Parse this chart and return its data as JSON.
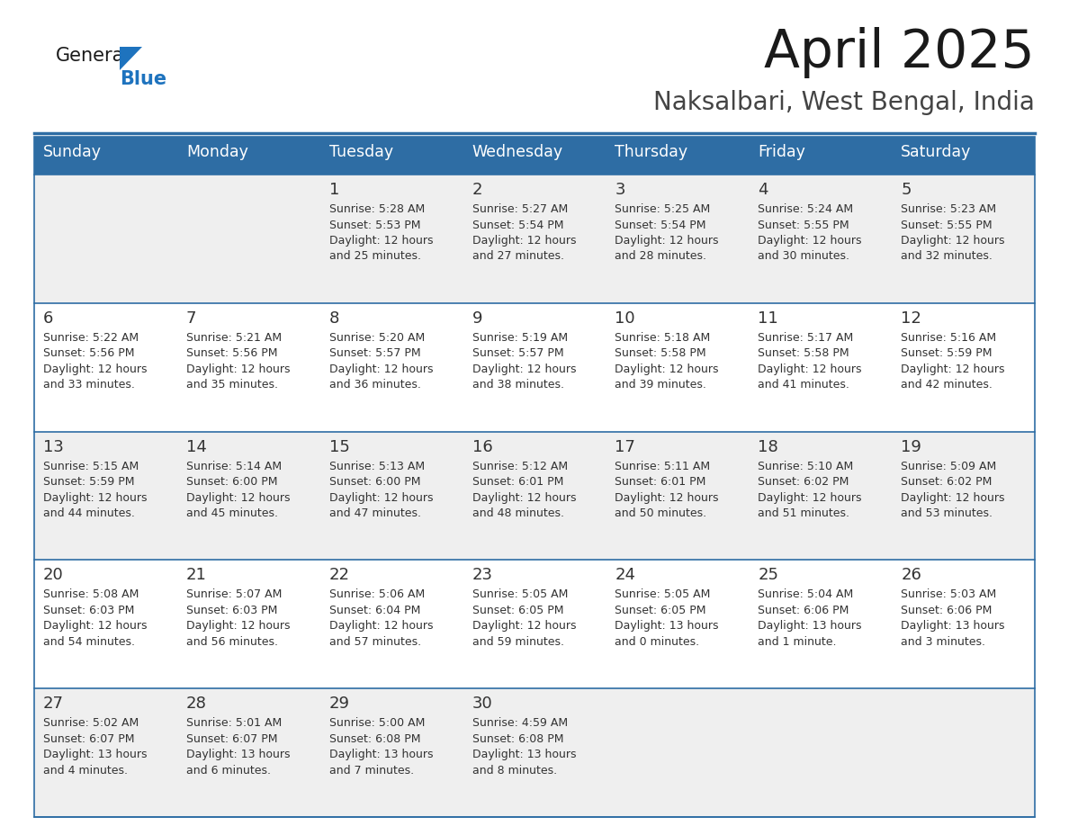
{
  "title": "April 2025",
  "subtitle": "Naksalbari, West Bengal, India",
  "days_of_week": [
    "Sunday",
    "Monday",
    "Tuesday",
    "Wednesday",
    "Thursday",
    "Friday",
    "Saturday"
  ],
  "header_bg": "#2E6DA4",
  "header_text": "#FFFFFF",
  "row_bg_odd": "#EFEFEF",
  "row_bg_even": "#FFFFFF",
  "divider_color": "#2E6DA4",
  "text_color": "#333333",
  "calendar_data": [
    [
      {
        "day": null,
        "sunrise": null,
        "sunset": null,
        "daylight_line1": null,
        "daylight_line2": null
      },
      {
        "day": null,
        "sunrise": null,
        "sunset": null,
        "daylight_line1": null,
        "daylight_line2": null
      },
      {
        "day": "1",
        "sunrise": "Sunrise: 5:28 AM",
        "sunset": "Sunset: 5:53 PM",
        "daylight_line1": "Daylight: 12 hours",
        "daylight_line2": "and 25 minutes."
      },
      {
        "day": "2",
        "sunrise": "Sunrise: 5:27 AM",
        "sunset": "Sunset: 5:54 PM",
        "daylight_line1": "Daylight: 12 hours",
        "daylight_line2": "and 27 minutes."
      },
      {
        "day": "3",
        "sunrise": "Sunrise: 5:25 AM",
        "sunset": "Sunset: 5:54 PM",
        "daylight_line1": "Daylight: 12 hours",
        "daylight_line2": "and 28 minutes."
      },
      {
        "day": "4",
        "sunrise": "Sunrise: 5:24 AM",
        "sunset": "Sunset: 5:55 PM",
        "daylight_line1": "Daylight: 12 hours",
        "daylight_line2": "and 30 minutes."
      },
      {
        "day": "5",
        "sunrise": "Sunrise: 5:23 AM",
        "sunset": "Sunset: 5:55 PM",
        "daylight_line1": "Daylight: 12 hours",
        "daylight_line2": "and 32 minutes."
      }
    ],
    [
      {
        "day": "6",
        "sunrise": "Sunrise: 5:22 AM",
        "sunset": "Sunset: 5:56 PM",
        "daylight_line1": "Daylight: 12 hours",
        "daylight_line2": "and 33 minutes."
      },
      {
        "day": "7",
        "sunrise": "Sunrise: 5:21 AM",
        "sunset": "Sunset: 5:56 PM",
        "daylight_line1": "Daylight: 12 hours",
        "daylight_line2": "and 35 minutes."
      },
      {
        "day": "8",
        "sunrise": "Sunrise: 5:20 AM",
        "sunset": "Sunset: 5:57 PM",
        "daylight_line1": "Daylight: 12 hours",
        "daylight_line2": "and 36 minutes."
      },
      {
        "day": "9",
        "sunrise": "Sunrise: 5:19 AM",
        "sunset": "Sunset: 5:57 PM",
        "daylight_line1": "Daylight: 12 hours",
        "daylight_line2": "and 38 minutes."
      },
      {
        "day": "10",
        "sunrise": "Sunrise: 5:18 AM",
        "sunset": "Sunset: 5:58 PM",
        "daylight_line1": "Daylight: 12 hours",
        "daylight_line2": "and 39 minutes."
      },
      {
        "day": "11",
        "sunrise": "Sunrise: 5:17 AM",
        "sunset": "Sunset: 5:58 PM",
        "daylight_line1": "Daylight: 12 hours",
        "daylight_line2": "and 41 minutes."
      },
      {
        "day": "12",
        "sunrise": "Sunrise: 5:16 AM",
        "sunset": "Sunset: 5:59 PM",
        "daylight_line1": "Daylight: 12 hours",
        "daylight_line2": "and 42 minutes."
      }
    ],
    [
      {
        "day": "13",
        "sunrise": "Sunrise: 5:15 AM",
        "sunset": "Sunset: 5:59 PM",
        "daylight_line1": "Daylight: 12 hours",
        "daylight_line2": "and 44 minutes."
      },
      {
        "day": "14",
        "sunrise": "Sunrise: 5:14 AM",
        "sunset": "Sunset: 6:00 PM",
        "daylight_line1": "Daylight: 12 hours",
        "daylight_line2": "and 45 minutes."
      },
      {
        "day": "15",
        "sunrise": "Sunrise: 5:13 AM",
        "sunset": "Sunset: 6:00 PM",
        "daylight_line1": "Daylight: 12 hours",
        "daylight_line2": "and 47 minutes."
      },
      {
        "day": "16",
        "sunrise": "Sunrise: 5:12 AM",
        "sunset": "Sunset: 6:01 PM",
        "daylight_line1": "Daylight: 12 hours",
        "daylight_line2": "and 48 minutes."
      },
      {
        "day": "17",
        "sunrise": "Sunrise: 5:11 AM",
        "sunset": "Sunset: 6:01 PM",
        "daylight_line1": "Daylight: 12 hours",
        "daylight_line2": "and 50 minutes."
      },
      {
        "day": "18",
        "sunrise": "Sunrise: 5:10 AM",
        "sunset": "Sunset: 6:02 PM",
        "daylight_line1": "Daylight: 12 hours",
        "daylight_line2": "and 51 minutes."
      },
      {
        "day": "19",
        "sunrise": "Sunrise: 5:09 AM",
        "sunset": "Sunset: 6:02 PM",
        "daylight_line1": "Daylight: 12 hours",
        "daylight_line2": "and 53 minutes."
      }
    ],
    [
      {
        "day": "20",
        "sunrise": "Sunrise: 5:08 AM",
        "sunset": "Sunset: 6:03 PM",
        "daylight_line1": "Daylight: 12 hours",
        "daylight_line2": "and 54 minutes."
      },
      {
        "day": "21",
        "sunrise": "Sunrise: 5:07 AM",
        "sunset": "Sunset: 6:03 PM",
        "daylight_line1": "Daylight: 12 hours",
        "daylight_line2": "and 56 minutes."
      },
      {
        "day": "22",
        "sunrise": "Sunrise: 5:06 AM",
        "sunset": "Sunset: 6:04 PM",
        "daylight_line1": "Daylight: 12 hours",
        "daylight_line2": "and 57 minutes."
      },
      {
        "day": "23",
        "sunrise": "Sunrise: 5:05 AM",
        "sunset": "Sunset: 6:05 PM",
        "daylight_line1": "Daylight: 12 hours",
        "daylight_line2": "and 59 minutes."
      },
      {
        "day": "24",
        "sunrise": "Sunrise: 5:05 AM",
        "sunset": "Sunset: 6:05 PM",
        "daylight_line1": "Daylight: 13 hours",
        "daylight_line2": "and 0 minutes."
      },
      {
        "day": "25",
        "sunrise": "Sunrise: 5:04 AM",
        "sunset": "Sunset: 6:06 PM",
        "daylight_line1": "Daylight: 13 hours",
        "daylight_line2": "and 1 minute."
      },
      {
        "day": "26",
        "sunrise": "Sunrise: 5:03 AM",
        "sunset": "Sunset: 6:06 PM",
        "daylight_line1": "Daylight: 13 hours",
        "daylight_line2": "and 3 minutes."
      }
    ],
    [
      {
        "day": "27",
        "sunrise": "Sunrise: 5:02 AM",
        "sunset": "Sunset: 6:07 PM",
        "daylight_line1": "Daylight: 13 hours",
        "daylight_line2": "and 4 minutes."
      },
      {
        "day": "28",
        "sunrise": "Sunrise: 5:01 AM",
        "sunset": "Sunset: 6:07 PM",
        "daylight_line1": "Daylight: 13 hours",
        "daylight_line2": "and 6 minutes."
      },
      {
        "day": "29",
        "sunrise": "Sunrise: 5:00 AM",
        "sunset": "Sunset: 6:08 PM",
        "daylight_line1": "Daylight: 13 hours",
        "daylight_line2": "and 7 minutes."
      },
      {
        "day": "30",
        "sunrise": "Sunrise: 4:59 AM",
        "sunset": "Sunset: 6:08 PM",
        "daylight_line1": "Daylight: 13 hours",
        "daylight_line2": "and 8 minutes."
      },
      {
        "day": null,
        "sunrise": null,
        "sunset": null,
        "daylight_line1": null,
        "daylight_line2": null
      },
      {
        "day": null,
        "sunrise": null,
        "sunset": null,
        "daylight_line1": null,
        "daylight_line2": null
      },
      {
        "day": null,
        "sunrise": null,
        "sunset": null,
        "daylight_line1": null,
        "daylight_line2": null
      }
    ]
  ],
  "logo_color_general": "#1a1a1a",
  "logo_color_blue": "#1E73BE",
  "logo_triangle_color": "#1E73BE"
}
